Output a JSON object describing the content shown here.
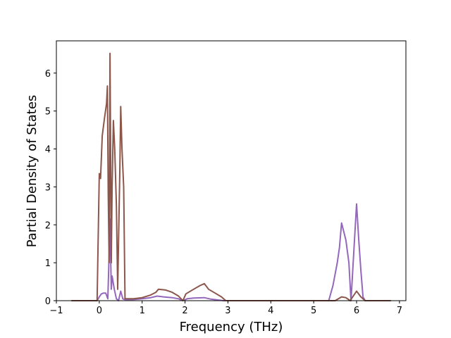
{
  "chart_data": {
    "type": "line",
    "title": "",
    "xlabel": "Frequency (THz)",
    "ylabel": "Partial Density of States",
    "xlim": [
      -1,
      7.15
    ],
    "ylim": [
      0,
      6.85
    ],
    "x_ticks": [
      -1,
      0,
      1,
      2,
      3,
      4,
      5,
      6,
      7
    ],
    "x_tick_labels": [
      "−1",
      "0",
      "1",
      "2",
      "3",
      "4",
      "5",
      "6",
      "7"
    ],
    "y_ticks": [
      0,
      1,
      2,
      3,
      4,
      5,
      6
    ],
    "y_tick_labels": [
      "0",
      "1",
      "2",
      "3",
      "4",
      "5",
      "6"
    ],
    "grid": false,
    "legend": "none",
    "series": [
      {
        "color": "#9467bd",
        "points": [
          [
            -0.65,
            0
          ],
          [
            -0.05,
            0
          ],
          [
            0.0,
            0.1
          ],
          [
            0.05,
            0.18
          ],
          [
            0.1,
            0.2
          ],
          [
            0.15,
            0.2
          ],
          [
            0.2,
            0.05
          ],
          [
            0.22,
            0.8
          ],
          [
            0.25,
            2.15
          ],
          [
            0.28,
            0.3
          ],
          [
            0.3,
            0.65
          ],
          [
            0.35,
            0.3
          ],
          [
            0.4,
            0.05
          ],
          [
            0.45,
            0.0
          ],
          [
            0.5,
            0.25
          ],
          [
            0.55,
            0.05
          ],
          [
            0.6,
            0.03
          ],
          [
            0.8,
            0.03
          ],
          [
            1.0,
            0.05
          ],
          [
            1.2,
            0.08
          ],
          [
            1.35,
            0.12
          ],
          [
            1.5,
            0.1
          ],
          [
            1.7,
            0.08
          ],
          [
            1.85,
            0.05
          ],
          [
            1.95,
            0.0
          ],
          [
            2.05,
            0.05
          ],
          [
            2.2,
            0.07
          ],
          [
            2.45,
            0.08
          ],
          [
            2.6,
            0.04
          ],
          [
            2.75,
            0.02
          ],
          [
            2.9,
            0.0
          ],
          [
            5.35,
            0.0
          ],
          [
            5.45,
            0.4
          ],
          [
            5.55,
            1.0
          ],
          [
            5.6,
            1.4
          ],
          [
            5.65,
            2.05
          ],
          [
            5.75,
            1.6
          ],
          [
            5.82,
            1.0
          ],
          [
            5.87,
            0.0
          ],
          [
            5.93,
            1.2
          ],
          [
            6.0,
            2.55
          ],
          [
            6.05,
            1.6
          ],
          [
            6.1,
            0.8
          ],
          [
            6.15,
            0.1
          ],
          [
            6.2,
            0.0
          ],
          [
            6.8,
            0.0
          ]
        ]
      },
      {
        "color": "#8c564b",
        "points": [
          [
            -0.65,
            0
          ],
          [
            -0.05,
            0
          ],
          [
            0.0,
            3.35
          ],
          [
            0.03,
            3.22
          ],
          [
            0.07,
            4.35
          ],
          [
            0.12,
            4.8
          ],
          [
            0.17,
            5.2
          ],
          [
            0.19,
            5.66
          ],
          [
            0.21,
            2.8
          ],
          [
            0.23,
            1.0
          ],
          [
            0.25,
            6.52
          ],
          [
            0.28,
            1.0
          ],
          [
            0.3,
            3.0
          ],
          [
            0.33,
            4.75
          ],
          [
            0.36,
            4.0
          ],
          [
            0.4,
            2.5
          ],
          [
            0.43,
            0.3
          ],
          [
            0.48,
            3.5
          ],
          [
            0.5,
            5.12
          ],
          [
            0.53,
            4.0
          ],
          [
            0.57,
            3.0
          ],
          [
            0.6,
            0.05
          ],
          [
            0.8,
            0.05
          ],
          [
            1.0,
            0.08
          ],
          [
            1.2,
            0.15
          ],
          [
            1.32,
            0.22
          ],
          [
            1.38,
            0.3
          ],
          [
            1.55,
            0.28
          ],
          [
            1.7,
            0.22
          ],
          [
            1.85,
            0.12
          ],
          [
            1.95,
            0.0
          ],
          [
            2.02,
            0.18
          ],
          [
            2.2,
            0.3
          ],
          [
            2.35,
            0.4
          ],
          [
            2.45,
            0.45
          ],
          [
            2.55,
            0.3
          ],
          [
            2.7,
            0.2
          ],
          [
            2.85,
            0.1
          ],
          [
            2.95,
            0.0
          ],
          [
            5.5,
            0.0
          ],
          [
            5.65,
            0.1
          ],
          [
            5.75,
            0.08
          ],
          [
            5.85,
            0.0
          ],
          [
            6.0,
            0.25
          ],
          [
            6.1,
            0.1
          ],
          [
            6.2,
            0.0
          ],
          [
            6.8,
            0.0
          ]
        ]
      }
    ]
  }
}
